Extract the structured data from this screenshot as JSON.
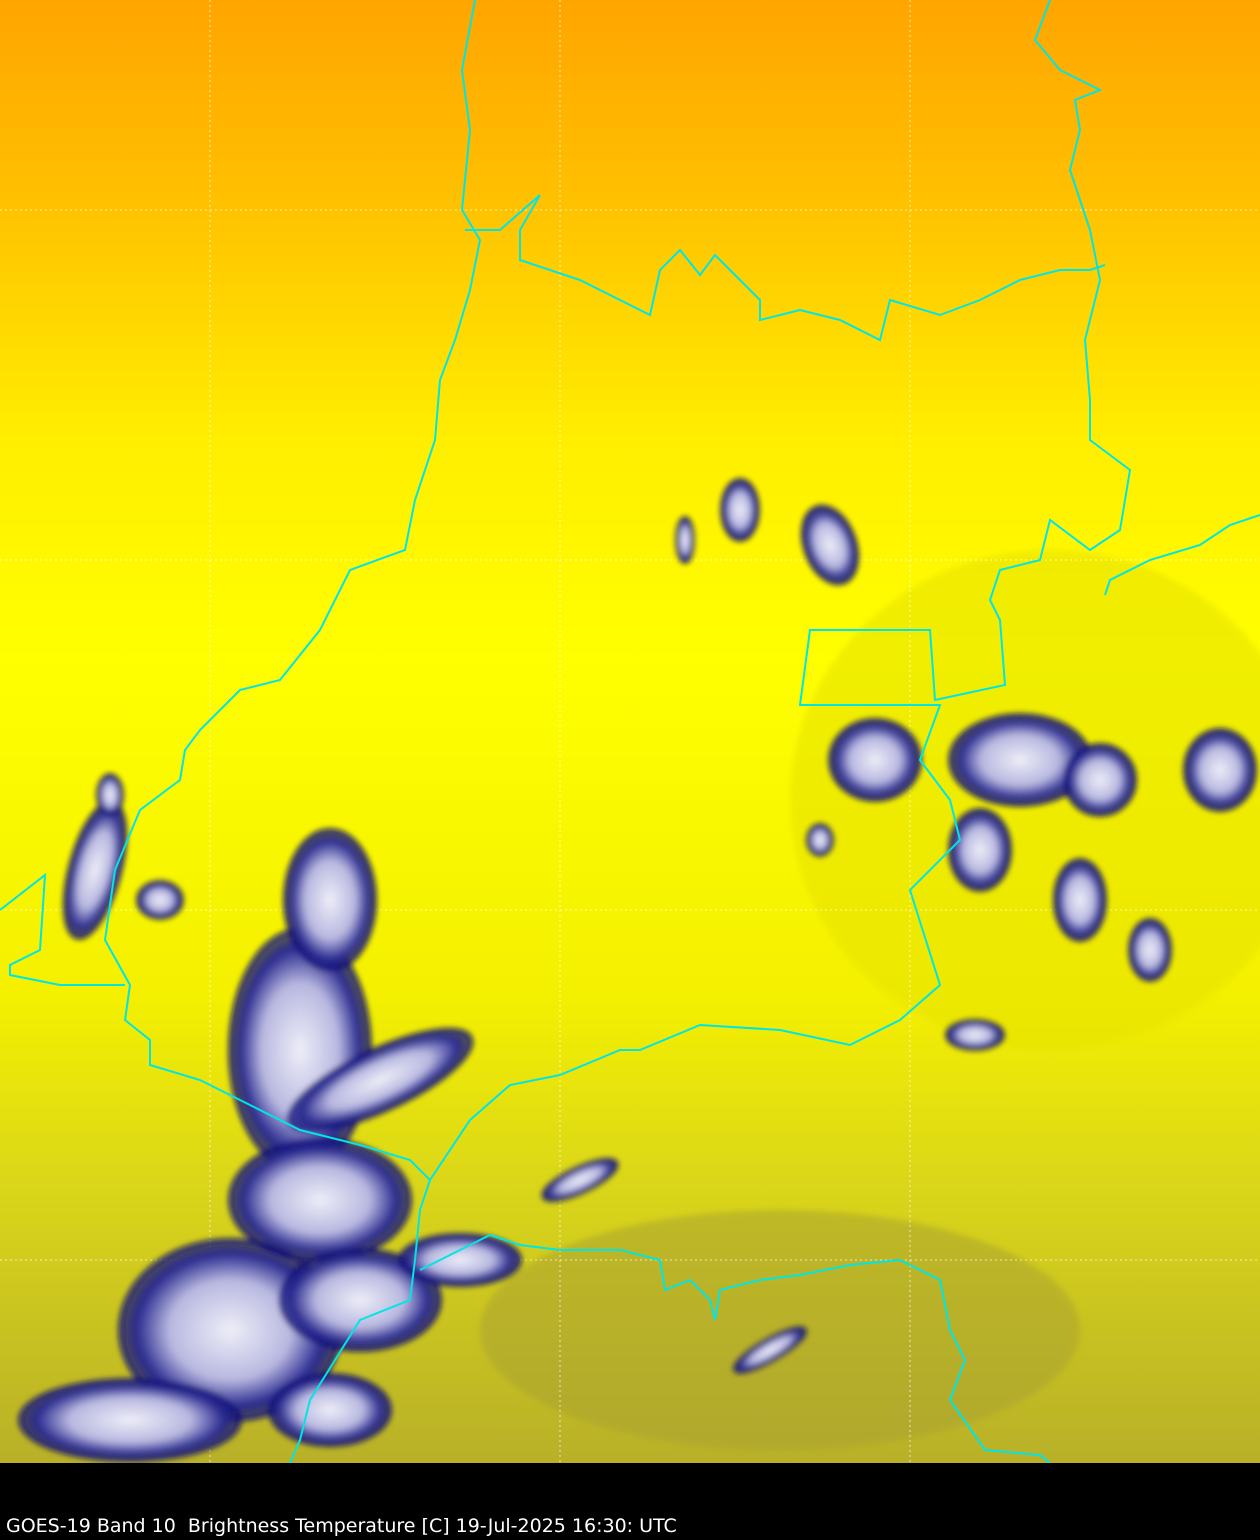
{
  "caption": "GOES-19 Band 10  Brightness Temperature [C] 19-Jul-2025 16:30: UTC",
  "colors": {
    "warm_top": "#ffa800",
    "mid": "#ffff00",
    "cool_bottom": "#b8b028",
    "border": "#00e5e5",
    "cloud_edge": "#0a0a78",
    "cloud_core": "#e8e8f4",
    "grid": "#ffffff",
    "background": "#000000"
  }
}
